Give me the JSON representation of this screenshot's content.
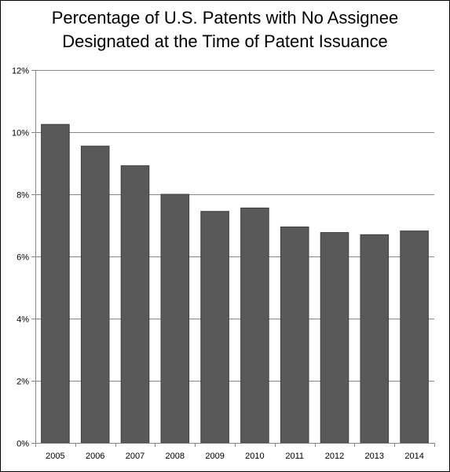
{
  "chart_data": {
    "type": "bar",
    "title_lines": [
      "Percentage of U.S. Patents with No Assignee",
      "Designated at the Time of Patent Issuance"
    ],
    "xlabel": "",
    "ylabel": "",
    "categories": [
      "2005",
      "2006",
      "2007",
      "2008",
      "2009",
      "2010",
      "2011",
      "2012",
      "2013",
      "2014"
    ],
    "values": [
      10.25,
      9.55,
      8.92,
      8.0,
      7.45,
      7.56,
      6.95,
      6.77,
      6.7,
      6.82
    ],
    "ylim": [
      0,
      12
    ],
    "yticks": [
      0,
      2,
      4,
      6,
      8,
      10,
      12
    ],
    "ytick_labels": [
      "0%",
      "2%",
      "4%",
      "6%",
      "8%",
      "10%",
      "12%"
    ],
    "grid": true,
    "legend": "none",
    "bar_color": "#595959"
  }
}
